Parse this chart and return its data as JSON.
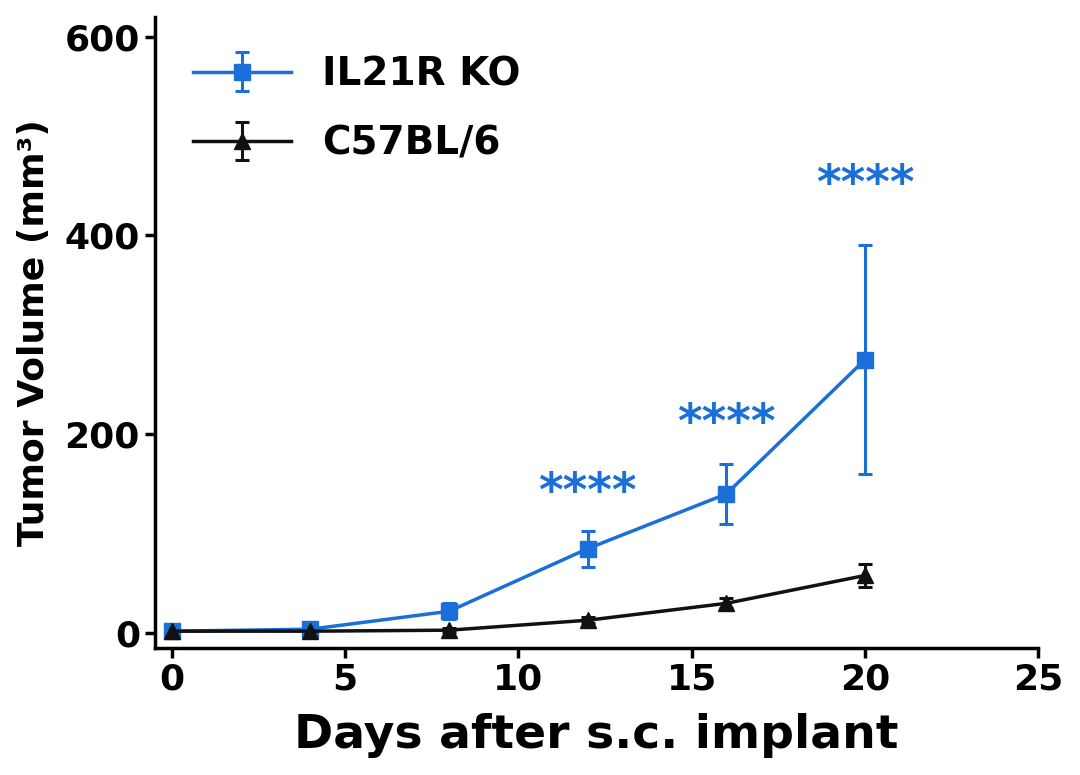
{
  "il21r_ko": {
    "x": [
      0,
      4,
      8,
      12,
      16,
      20
    ],
    "y": [
      2,
      4,
      22,
      85,
      140,
      275
    ],
    "yerr": [
      2,
      3,
      8,
      18,
      30,
      115
    ],
    "color": "#1B6FD8",
    "label": "IL21R KO",
    "marker": "s",
    "markersize": 11,
    "linewidth": 2.5
  },
  "c57bl6": {
    "x": [
      0,
      4,
      8,
      12,
      16,
      20
    ],
    "y": [
      2,
      2,
      3,
      13,
      30,
      58
    ],
    "yerr": [
      2,
      1,
      2,
      3,
      5,
      12
    ],
    "color": "#111111",
    "label": "C57BL/6",
    "marker": "^",
    "markersize": 11,
    "linewidth": 2.5
  },
  "significance": {
    "x": [
      12,
      16,
      20
    ],
    "y": [
      140,
      210,
      450
    ],
    "text": "****",
    "color": "#1B6FD8",
    "fontsize": 34
  },
  "xlabel": "Days after s.c. implant",
  "ylabel": "Tumor Volume (mm³)",
  "xlim": [
    -0.5,
    25
  ],
  "ylim": [
    -15,
    620
  ],
  "xticks": [
    0,
    5,
    10,
    15,
    20,
    25
  ],
  "yticks": [
    0,
    200,
    400,
    600
  ],
  "xlabel_fontsize": 34,
  "ylabel_fontsize": 26,
  "tick_fontsize": 26,
  "legend_fontsize": 28,
  "background_color": "#ffffff",
  "spine_linewidth": 2.5
}
